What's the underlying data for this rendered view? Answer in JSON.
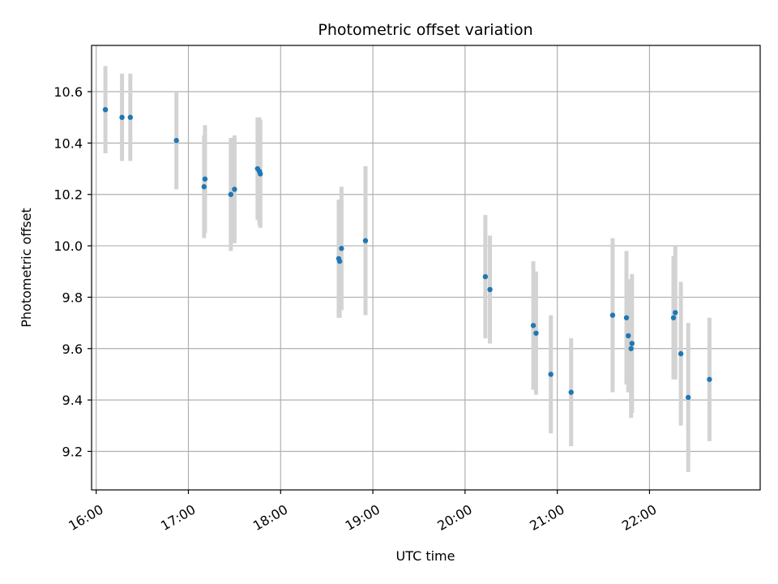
{
  "chart_data": {
    "type": "scatter",
    "title": "Photometric offset variation",
    "xlabel": "UTC time",
    "ylabel": "Photometric offset",
    "x_unit": "hours UTC",
    "xlim": [
      15.95,
      23.2
    ],
    "ylim": [
      9.05,
      10.78
    ],
    "x_ticks": [
      16,
      17,
      18,
      19,
      20,
      21,
      22
    ],
    "x_tick_labels": [
      "16:00",
      "17:00",
      "18:00",
      "19:00",
      "20:00",
      "21:00",
      "22:00"
    ],
    "y_ticks": [
      9.2,
      9.4,
      9.6,
      9.8,
      10.0,
      10.2,
      10.4,
      10.6
    ],
    "y_tick_labels": [
      "9.2",
      "9.4",
      "9.6",
      "9.8",
      "10.0",
      "10.2",
      "10.4",
      "10.6"
    ],
    "grid": true,
    "colors": {
      "points": "#1f77b4",
      "errorbars": "#d3d3d3",
      "grid": "#b0b0b0"
    },
    "points": [
      {
        "x": 16.1,
        "y": 10.53,
        "yerr": 0.17
      },
      {
        "x": 16.28,
        "y": 10.5,
        "yerr": 0.17
      },
      {
        "x": 16.37,
        "y": 10.5,
        "yerr": 0.17
      },
      {
        "x": 16.87,
        "y": 10.41,
        "yerr": 0.19
      },
      {
        "x": 17.17,
        "y": 10.23,
        "yerr": 0.2
      },
      {
        "x": 17.18,
        "y": 10.26,
        "yerr": 0.21
      },
      {
        "x": 17.46,
        "y": 10.2,
        "yerr": 0.22
      },
      {
        "x": 17.5,
        "y": 10.22,
        "yerr": 0.21
      },
      {
        "x": 17.75,
        "y": 10.3,
        "yerr": 0.2
      },
      {
        "x": 17.77,
        "y": 10.29,
        "yerr": 0.21
      },
      {
        "x": 17.78,
        "y": 10.28,
        "yerr": 0.21
      },
      {
        "x": 18.63,
        "y": 9.95,
        "yerr": 0.23
      },
      {
        "x": 18.64,
        "y": 9.94,
        "yerr": 0.22
      },
      {
        "x": 18.66,
        "y": 9.99,
        "yerr": 0.24
      },
      {
        "x": 18.92,
        "y": 10.02,
        "yerr": 0.29
      },
      {
        "x": 20.22,
        "y": 9.88,
        "yerr": 0.24
      },
      {
        "x": 20.27,
        "y": 9.83,
        "yerr": 0.21
      },
      {
        "x": 20.74,
        "y": 9.69,
        "yerr": 0.25
      },
      {
        "x": 20.77,
        "y": 9.66,
        "yerr": 0.24
      },
      {
        "x": 20.93,
        "y": 9.5,
        "yerr": 0.23
      },
      {
        "x": 21.15,
        "y": 9.43,
        "yerr": 0.21
      },
      {
        "x": 21.6,
        "y": 9.73,
        "yerr": 0.3
      },
      {
        "x": 21.75,
        "y": 9.72,
        "yerr": 0.26
      },
      {
        "x": 21.77,
        "y": 9.65,
        "yerr": 0.22
      },
      {
        "x": 21.8,
        "y": 9.6,
        "yerr": 0.27
      },
      {
        "x": 21.81,
        "y": 9.62,
        "yerr": 0.27
      },
      {
        "x": 22.26,
        "y": 9.72,
        "yerr": 0.24
      },
      {
        "x": 22.28,
        "y": 9.74,
        "yerr": 0.26
      },
      {
        "x": 22.34,
        "y": 9.58,
        "yerr": 0.28
      },
      {
        "x": 22.42,
        "y": 9.41,
        "yerr": 0.29
      },
      {
        "x": 22.65,
        "y": 9.48,
        "yerr": 0.24
      }
    ]
  }
}
